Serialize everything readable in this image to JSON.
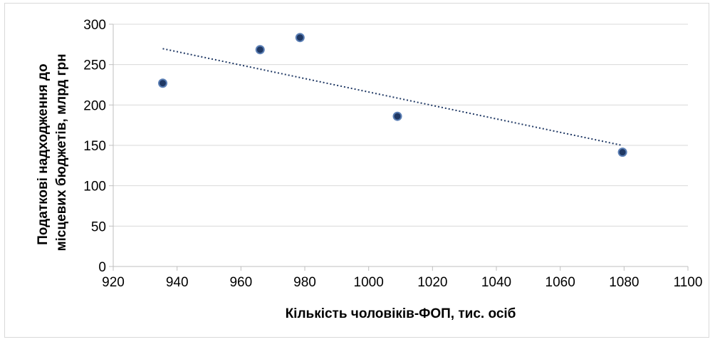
{
  "chart_data": {
    "type": "scatter",
    "title": "",
    "xlabel": "Кількість чоловіків-ФОП, тис. осіб",
    "ylabel_lines": [
      "Податкові надходження до",
      "місцевих бюджетів, млрд грн"
    ],
    "xlim": [
      920,
      1100
    ],
    "ylim": [
      0,
      300
    ],
    "xticks": [
      920,
      940,
      960,
      980,
      1000,
      1020,
      1040,
      1060,
      1080,
      1100
    ],
    "yticks": [
      0,
      50,
      100,
      150,
      200,
      250,
      300
    ],
    "grid": "horizontal",
    "legend": "none",
    "marker_color": "#1f3864",
    "marker_edge_color": "#5b7fb5",
    "trendline": {
      "type": "linear",
      "style": "dotted",
      "color": "#1f3864"
    },
    "points": [
      {
        "x": 935.5,
        "y": 227
      },
      {
        "x": 966,
        "y": 268.5
      },
      {
        "x": 978.5,
        "y": 283.5
      },
      {
        "x": 1009,
        "y": 186
      },
      {
        "x": 1079.5,
        "y": 141.5
      }
    ]
  }
}
